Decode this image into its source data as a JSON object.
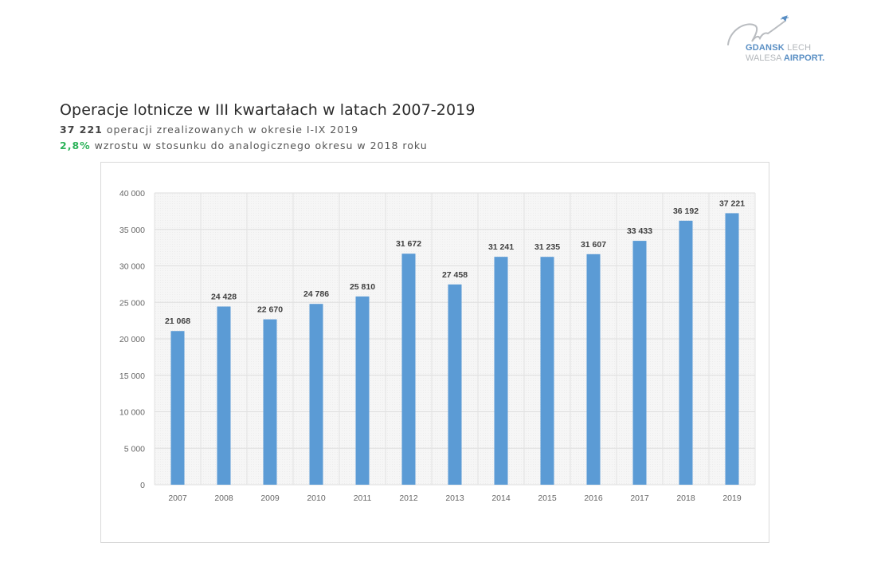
{
  "logo": {
    "line1_a": "GDANSK",
    "line1_b": " LECH",
    "line2_a": "WALESA ",
    "line2_b": "AIRPORT."
  },
  "header": {
    "title": "Operacje lotnicze w III kwartałach w latach 2007-2019",
    "subtitle1_value": "37 221",
    "subtitle1_text": " operacji zrealizowanych w okresie I-IX 2019",
    "subtitle2_value": "2,8%",
    "subtitle2_text": " wzrostu w stosunku do analogicznego okresu w 2018 roku"
  },
  "colors": {
    "bar": "#5b9bd5",
    "growth": "#2db35a"
  },
  "chart_data": {
    "type": "bar",
    "title": "Operacje lotnicze w III kwartałach w latach 2007-2019",
    "xlabel": "",
    "ylabel": "",
    "categories": [
      "2007",
      "2008",
      "2009",
      "2010",
      "2011",
      "2012",
      "2013",
      "2014",
      "2015",
      "2016",
      "2017",
      "2018",
      "2019"
    ],
    "values": [
      21068,
      24428,
      22670,
      24786,
      25810,
      31672,
      27458,
      31241,
      31235,
      31607,
      33433,
      36192,
      37221
    ],
    "data_labels": [
      "21 068",
      "24 428",
      "22 670",
      "24 786",
      "25 810",
      "31 672",
      "27 458",
      "31 241",
      "31 235",
      "31 607",
      "33 433",
      "36 192",
      "37 221"
    ],
    "ylim": [
      0,
      40000
    ],
    "yticks": [
      0,
      5000,
      10000,
      15000,
      20000,
      25000,
      30000,
      35000,
      40000
    ],
    "ytick_labels": [
      "0",
      "5 000",
      "10 000",
      "15 000",
      "20 000",
      "25 000",
      "30 000",
      "35 000",
      "40 000"
    ],
    "grid": true,
    "legend": "none"
  }
}
